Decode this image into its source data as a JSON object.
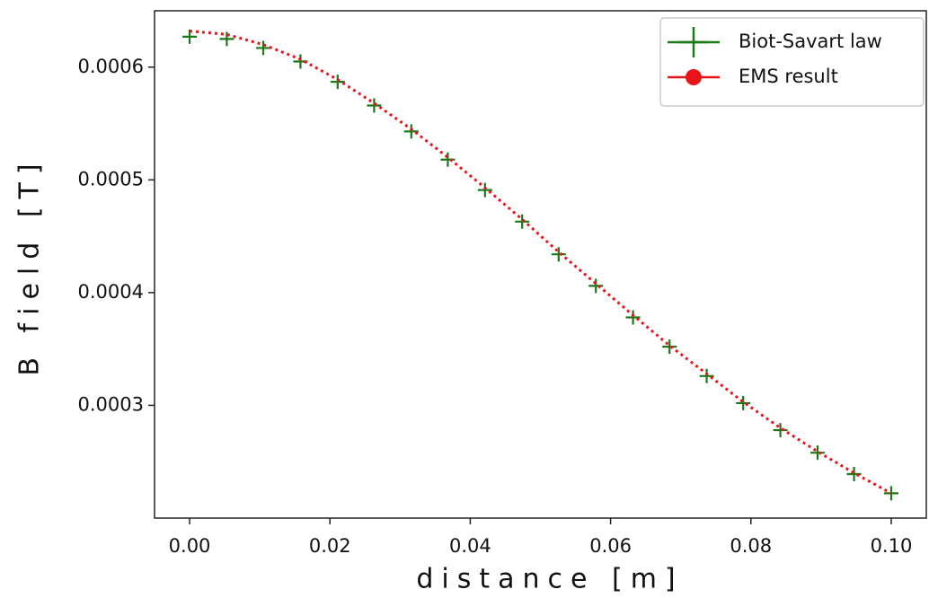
{
  "chart_data": {
    "type": "line",
    "x_label": "distance [m]",
    "y_label": "B field [T]",
    "x": [
      0,
      0.0053,
      0.0105,
      0.0158,
      0.0211,
      0.0263,
      0.0316,
      0.0368,
      0.0421,
      0.0474,
      0.0526,
      0.0579,
      0.0632,
      0.0684,
      0.0737,
      0.0789,
      0.0842,
      0.0895,
      0.0947,
      0.1
    ],
    "series": [
      {
        "name": "Biot-Savart law",
        "color": "#1a7a1a",
        "marker": "+",
        "linestyle": "none",
        "values": [
          0.000627,
          0.000625,
          0.000617,
          0.000605,
          0.000587,
          0.000566,
          0.000543,
          0.000518,
          0.000491,
          0.000463,
          0.000434,
          0.000406,
          0.000378,
          0.000352,
          0.000326,
          0.000302,
          0.000278,
          0.000258,
          0.000239,
          0.000222
        ]
      },
      {
        "name": "EMS result",
        "color": "#e8141a",
        "marker": "o",
        "linestyle": "dotted",
        "values": [
          0.000632,
          0.000629,
          0.00062,
          0.000607,
          0.000589,
          0.000568,
          0.000545,
          0.00052,
          0.000493,
          0.000465,
          0.000436,
          0.000408,
          0.00038,
          0.000353,
          0.000328,
          0.000303,
          0.00028,
          0.000259,
          0.00024,
          0.000222
        ]
      }
    ],
    "xlim": [
      -0.005,
      0.105
    ],
    "ylim": [
      0.0002,
      0.00065
    ],
    "xticks": [
      {
        "value": 0,
        "label": "0.00"
      },
      {
        "value": 0.02,
        "label": "0.02"
      },
      {
        "value": 0.04,
        "label": "0.04"
      },
      {
        "value": 0.06,
        "label": "0.06"
      },
      {
        "value": 0.08,
        "label": "0.08"
      },
      {
        "value": 0.1,
        "label": "0.10"
      }
    ],
    "yticks": [
      0.0003,
      0.0004,
      0.0005,
      0.0006
    ],
    "grid": false,
    "legend": "upper right"
  }
}
